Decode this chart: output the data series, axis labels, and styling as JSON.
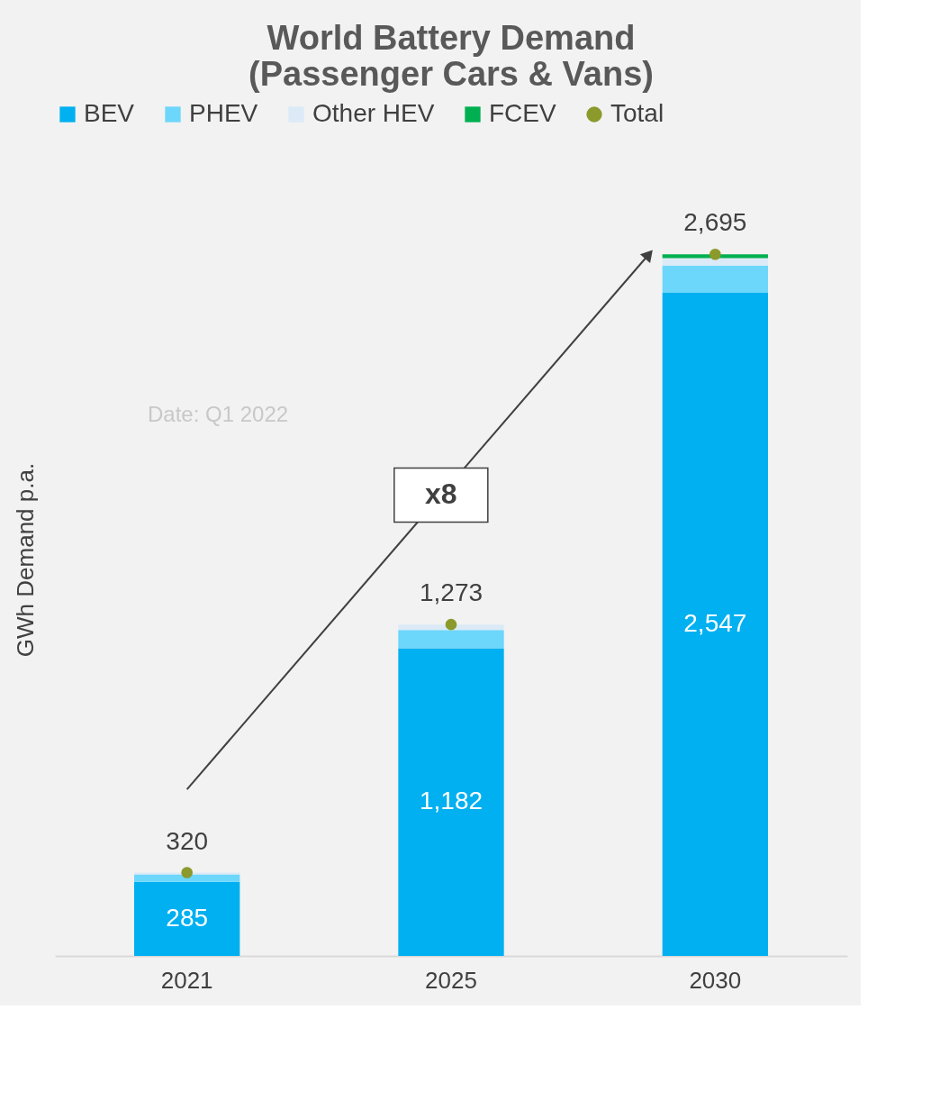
{
  "chart_data": {
    "type": "bar",
    "title": "World Battery Demand\n(Passenger Cars & Vans)",
    "ylabel": "GWh Demand p.a.",
    "stacked": true,
    "legend": "top",
    "categories": [
      "2021",
      "2025",
      "2030"
    ],
    "series": [
      {
        "name": "BEV",
        "color": "#00b0f0",
        "values": [
          285,
          1182,
          2547
        ],
        "value_labels": [
          "285",
          "1,182",
          "2,547"
        ]
      },
      {
        "name": "PHEV",
        "color": "#6dd6fb",
        "values": [
          28,
          70,
          105
        ]
      },
      {
        "name": "Other HEV",
        "color": "#dbeaf6",
        "values": [
          7,
          21,
          28
        ]
      },
      {
        "name": "FCEV",
        "color": "#00b050",
        "values": [
          0,
          0,
          15
        ]
      },
      {
        "name": "Total",
        "type": "scatter",
        "color": "#8b9a2b",
        "values": [
          320,
          1273,
          2695
        ]
      }
    ],
    "totals": [
      "320",
      "1,273",
      "2,695"
    ],
    "annotations": [
      "Date: Q1 2022",
      "x8"
    ],
    "grid": false
  }
}
